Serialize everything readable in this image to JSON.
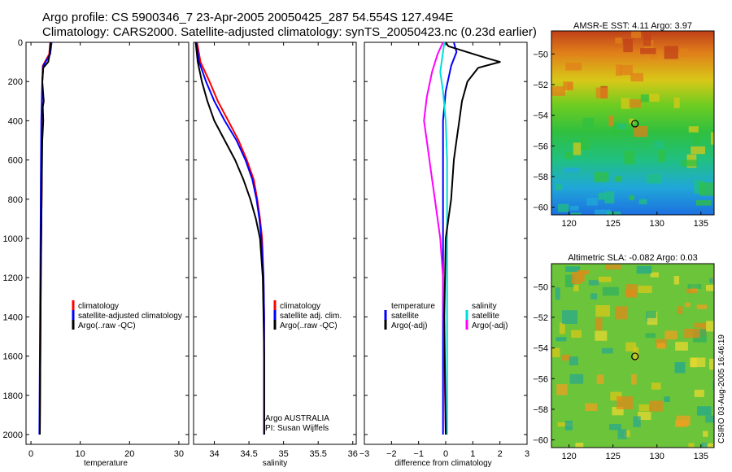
{
  "title_line1": "Argo profile: CS 5900346_7 23-Apr-2005 20050425_287 54.554S 127.494E",
  "title_line2": "Climatology: CARS2000. Satellite-adjusted climatology: synTS_20050423.nc (0.23d earlier)",
  "credit": "CSIRO 03-Aug-2005 16:46:19",
  "colors": {
    "clim": "#ff0000",
    "sat": "#0000ff",
    "argo": "#000000",
    "sal": "#ff00ff",
    "salsat": "#00dddd"
  },
  "chart_data": [
    {
      "type": "line",
      "name": "temperature",
      "xlabel": "temperature",
      "xlim": [
        -1,
        32
      ],
      "ylim": [
        2050,
        0
      ],
      "xticks": [
        0,
        10,
        20,
        30
      ],
      "yticks": [
        0,
        200,
        400,
        600,
        800,
        1000,
        1200,
        1400,
        1600,
        1800,
        2000
      ],
      "legend": [
        "climatology",
        "satellite-adjusted climatology",
        "Argo(..raw -QC)"
      ],
      "series": [
        {
          "name": "climatology",
          "color": "clim",
          "points": [
            [
              3.9,
              0
            ],
            [
              3.7,
              60
            ],
            [
              2.4,
              120
            ],
            [
              2.3,
              200
            ],
            [
              2.2,
              400
            ],
            [
              2.2,
              700
            ],
            [
              2.0,
              1200
            ],
            [
              1.9,
              1600
            ],
            [
              1.8,
              2000
            ]
          ]
        },
        {
          "name": "satellite",
          "color": "sat",
          "points": [
            [
              4.2,
              0
            ],
            [
              3.9,
              60
            ],
            [
              2.5,
              120
            ],
            [
              2.3,
              200
            ],
            [
              2.1,
              400
            ],
            [
              2.0,
              700
            ],
            [
              1.9,
              1200
            ],
            [
              1.8,
              1600
            ],
            [
              1.7,
              2000
            ]
          ]
        },
        {
          "name": "argo",
          "color": "argo",
          "points": [
            [
              4.0,
              0
            ],
            [
              3.8,
              60
            ],
            [
              3.5,
              100
            ],
            [
              2.5,
              130
            ],
            [
              2.3,
              200
            ],
            [
              2.6,
              300
            ],
            [
              2.4,
              330
            ],
            [
              2.5,
              400
            ],
            [
              2.3,
              500
            ],
            [
              2.2,
              700
            ],
            [
              2.0,
              1200
            ],
            [
              1.9,
              1600
            ],
            [
              1.8,
              2000
            ]
          ]
        }
      ]
    },
    {
      "type": "line",
      "name": "salinity",
      "xlabel": "salinity",
      "xlim": [
        33.7,
        36.05
      ],
      "ylim": [
        2050,
        0
      ],
      "xticks": [
        34,
        34.5,
        35,
        35.5,
        36
      ],
      "legend": [
        "climatology",
        "satellite adj. clim.",
        "Argo(..raw -QC)"
      ],
      "annotation": [
        "Argo AUSTRALIA",
        "PI: Susan Wijffels"
      ],
      "series": [
        {
          "name": "climatology",
          "color": "clim",
          "points": [
            [
              33.75,
              0
            ],
            [
              33.8,
              100
            ],
            [
              33.93,
              200
            ],
            [
              34.05,
              300
            ],
            [
              34.2,
              400
            ],
            [
              34.35,
              500
            ],
            [
              34.47,
              600
            ],
            [
              34.57,
              700
            ],
            [
              34.62,
              800
            ],
            [
              34.66,
              900
            ],
            [
              34.69,
              1000
            ],
            [
              34.71,
              1200
            ],
            [
              34.72,
              1400
            ],
            [
              34.72,
              1600
            ],
            [
              34.72,
              2000
            ]
          ]
        },
        {
          "name": "satellite",
          "color": "sat",
          "points": [
            [
              33.74,
              0
            ],
            [
              33.78,
              100
            ],
            [
              33.88,
              200
            ],
            [
              34.0,
              300
            ],
            [
              34.15,
              400
            ],
            [
              34.32,
              500
            ],
            [
              34.45,
              600
            ],
            [
              34.55,
              700
            ],
            [
              34.61,
              800
            ],
            [
              34.65,
              900
            ],
            [
              34.68,
              1000
            ],
            [
              34.71,
              1200
            ],
            [
              34.72,
              1400
            ],
            [
              34.72,
              1600
            ],
            [
              34.72,
              2000
            ]
          ]
        },
        {
          "name": "argo",
          "color": "argo",
          "points": [
            [
              33.73,
              0
            ],
            [
              33.76,
              100
            ],
            [
              33.82,
              200
            ],
            [
              33.9,
              300
            ],
            [
              34.0,
              400
            ],
            [
              34.15,
              500
            ],
            [
              34.3,
              600
            ],
            [
              34.42,
              700
            ],
            [
              34.52,
              800
            ],
            [
              34.6,
              900
            ],
            [
              34.66,
              1000
            ],
            [
              34.7,
              1200
            ],
            [
              34.71,
              1400
            ],
            [
              34.72,
              1600
            ],
            [
              34.72,
              2000
            ]
          ]
        }
      ]
    },
    {
      "type": "line",
      "name": "difference",
      "xlabel": "difference from climatology",
      "xlim": [
        -3,
        3
      ],
      "ylim": [
        2050,
        0
      ],
      "xticks": [
        -3,
        -2,
        -1,
        0,
        1,
        2,
        3
      ],
      "legend_left": [
        "temperature",
        "satellite",
        "Argo(-adj)"
      ],
      "legend_right": [
        "salinity",
        "satellite",
        "Argo(-adj)"
      ],
      "series": [
        {
          "name": "temp satellite",
          "color": "sat",
          "points": [
            [
              0.3,
              0
            ],
            [
              0.4,
              50
            ],
            [
              0.2,
              120
            ],
            [
              0.0,
              250
            ],
            [
              -0.1,
              400
            ],
            [
              -0.1,
              800
            ],
            [
              -0.1,
              1400
            ],
            [
              -0.1,
              2000
            ]
          ]
        },
        {
          "name": "sal satellite",
          "color": "salsat",
          "points": [
            [
              -0.05,
              0
            ],
            [
              -0.1,
              50
            ],
            [
              -0.2,
              150
            ],
            [
              -0.1,
              250
            ],
            [
              0.0,
              400
            ],
            [
              0.05,
              600
            ],
            [
              0.05,
              1000
            ],
            [
              0.05,
              2000
            ]
          ]
        },
        {
          "name": "sal argo",
          "color": "sal",
          "points": [
            [
              -0.1,
              0
            ],
            [
              -0.3,
              60
            ],
            [
              -0.5,
              150
            ],
            [
              -0.7,
              280
            ],
            [
              -0.8,
              400
            ],
            [
              -0.7,
              500
            ],
            [
              -0.6,
              600
            ],
            [
              -0.5,
              700
            ],
            [
              -0.4,
              800
            ],
            [
              -0.2,
              1000
            ],
            [
              -0.1,
              1200
            ],
            [
              -0.05,
              1600
            ],
            [
              0.0,
              2000
            ]
          ]
        },
        {
          "name": "temp argo",
          "color": "argo",
          "points": [
            [
              0.0,
              0
            ],
            [
              0.1,
              20
            ],
            [
              1.5,
              80
            ],
            [
              2.0,
              100
            ],
            [
              1.2,
              130
            ],
            [
              0.8,
              200
            ],
            [
              0.6,
              300
            ],
            [
              0.5,
              400
            ],
            [
              0.4,
              500
            ],
            [
              0.3,
              600
            ],
            [
              0.2,
              800
            ],
            [
              0.0,
              1000
            ],
            [
              -0.05,
              1400
            ],
            [
              0.0,
              2000
            ]
          ]
        }
      ]
    },
    {
      "type": "heatmap",
      "name": "sst-map",
      "title": "AMSR-E SST: 4.11 Argo: 3.97",
      "xlim": [
        118,
        136.5
      ],
      "ylim": [
        -60.5,
        -48.5
      ],
      "xticks": [
        120,
        125,
        130,
        135
      ],
      "yticks": [
        -50,
        -52,
        -54,
        -56,
        -58,
        -60
      ],
      "marker": [
        127.5,
        -54.55
      ]
    },
    {
      "type": "heatmap",
      "name": "sla-map",
      "title": "Altimetric SLA: -0.082 Argo: 0.03",
      "xlim": [
        118,
        136.5
      ],
      "ylim": [
        -60.5,
        -48.5
      ],
      "xticks": [
        120,
        125,
        130,
        135
      ],
      "yticks": [
        -50,
        -52,
        -54,
        -56,
        -58,
        -60
      ],
      "marker": [
        127.5,
        -54.55
      ]
    }
  ]
}
